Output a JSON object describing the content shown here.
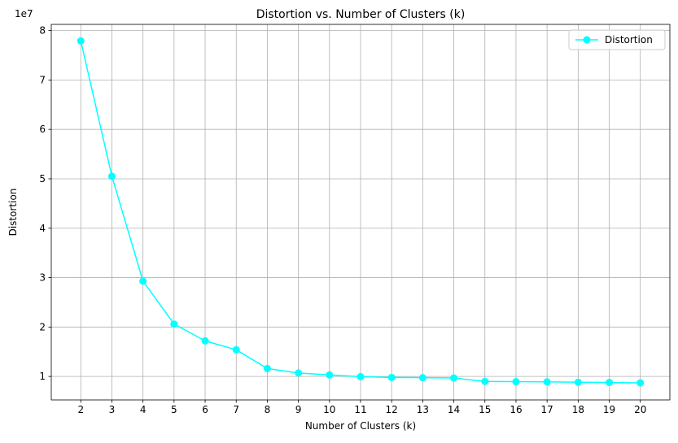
{
  "chart_data": {
    "type": "line",
    "title": "Distortion vs. Number of Clusters (k)",
    "xlabel": "Number of Clusters (k)",
    "ylabel": "Distortion",
    "y_offset_label": "1e7",
    "x": [
      2,
      3,
      4,
      5,
      6,
      7,
      8,
      9,
      10,
      11,
      12,
      13,
      14,
      15,
      16,
      17,
      18,
      19,
      20
    ],
    "series": [
      {
        "name": "Distortion",
        "color": "#00ffff",
        "marker": "circle",
        "values": [
          77900000,
          50500000,
          29300000,
          20600000,
          17200000,
          15400000,
          11600000,
          10700000,
          10300000,
          9950000,
          9800000,
          9750000,
          9700000,
          9000000,
          8950000,
          8900000,
          8820000,
          8780000,
          8700000
        ]
      }
    ],
    "xticks": [
      2,
      3,
      4,
      5,
      6,
      7,
      8,
      9,
      10,
      11,
      12,
      13,
      14,
      15,
      16,
      17,
      18,
      19,
      20
    ],
    "yticks": [
      1,
      2,
      3,
      4,
      5,
      6,
      7,
      8
    ],
    "xlim": [
      1.05,
      20.95
    ],
    "ylim": [
      5250000,
      81250000
    ],
    "grid": true,
    "legend_position": "top-right"
  }
}
